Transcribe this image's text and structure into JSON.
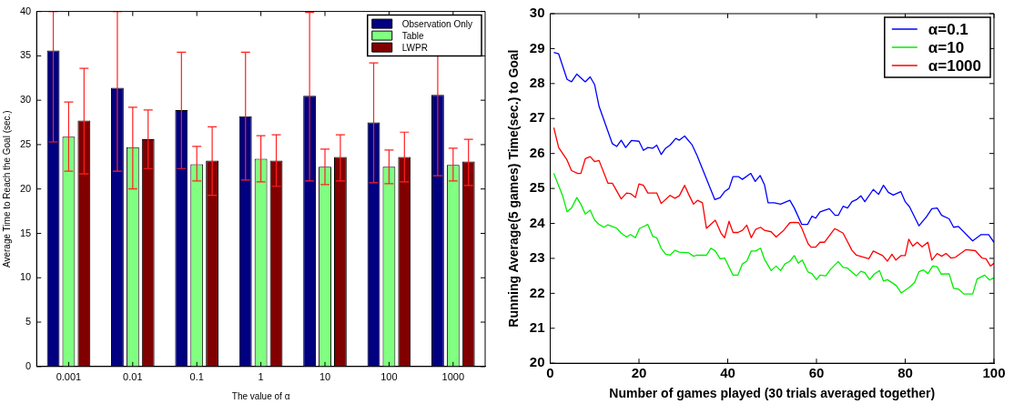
{
  "chart_data": [
    {
      "type": "bar",
      "xlabel": "The value of α",
      "ylabel": "Average Time to Reach the Goal (sec.)",
      "categories": [
        "0.001",
        "0.01",
        "0.1",
        "1",
        "10",
        "100",
        "1000"
      ],
      "series": [
        {
          "name": "Observation Only",
          "color": "#000080",
          "values": [
            35.6,
            31.4,
            28.9,
            28.2,
            30.5,
            27.5,
            30.6
          ],
          "errors": [
            [
              25.3,
              40
            ],
            [
              22.0,
              40
            ],
            [
              22.3,
              35.4
            ],
            [
              21.0,
              35.4
            ],
            [
              20.9,
              39.9
            ],
            [
              20.7,
              34.2
            ],
            [
              21.5,
              39.6
            ]
          ]
        },
        {
          "name": "Table",
          "color": "#80ff80",
          "values": [
            25.9,
            24.7,
            22.8,
            23.4,
            22.5,
            22.5,
            22.7
          ],
          "errors": [
            [
              22.0,
              29.8
            ],
            [
              20.0,
              29.2
            ],
            [
              20.9,
              24.8
            ],
            [
              20.8,
              26.0
            ],
            [
              20.5,
              24.5
            ],
            [
              20.6,
              24.4
            ],
            [
              20.9,
              24.6
            ]
          ]
        },
        {
          "name": "LWPR",
          "color": "#800000",
          "values": [
            27.7,
            25.6,
            23.2,
            23.2,
            23.6,
            23.6,
            23.1
          ],
          "errors": [
            [
              21.7,
              33.6
            ],
            [
              22.3,
              28.9
            ],
            [
              19.3,
              27.0
            ],
            [
              20.3,
              26.1
            ],
            [
              20.9,
              26.1
            ],
            [
              20.8,
              26.4
            ],
            [
              20.4,
              25.6
            ]
          ]
        }
      ],
      "ylim": [
        0,
        40
      ],
      "yticks": [
        0,
        5,
        10,
        15,
        20,
        25,
        30,
        35,
        40
      ],
      "grid": false,
      "legend": "top right"
    },
    {
      "type": "line",
      "xlabel": "Number of games played (30 trials averaged together)",
      "ylabel": "Running Average(5 games) Time(sec.) to Goal",
      "series": [
        {
          "name": "α=0.1",
          "color": "#0000ff",
          "x": [
            0.8,
            1.9,
            3.8,
            4.8,
            6,
            7.9,
            9,
            10,
            11,
            14,
            15,
            16,
            17,
            18.3,
            20,
            21,
            22,
            23.1,
            24,
            25,
            26,
            27,
            28.3,
            29.1,
            30.3,
            32,
            33.1,
            37.1,
            38.3,
            39.3,
            40.3,
            41.2,
            42.4,
            43.3,
            45.2,
            46.2,
            47.3,
            48.3,
            49.1,
            50.5,
            51.9,
            54,
            55,
            56.7,
            58,
            59,
            59.8,
            60.8,
            62.9,
            64.2,
            64.9,
            66,
            67,
            68,
            69,
            70,
            70.9,
            72.8,
            74,
            75.1,
            76.2,
            77.3,
            79,
            80,
            81,
            83.1,
            84.8,
            86,
            87.2,
            88.2,
            89.9,
            90.9,
            92,
            95.2,
            97.1,
            98.8,
            100
          ],
          "values": [
            28.89,
            28.85,
            28.12,
            28.05,
            28.27,
            28.05,
            28.19,
            27.97,
            27.35,
            26.28,
            26.2,
            26.38,
            26.17,
            26.37,
            26.35,
            26.09,
            26.17,
            26.15,
            26.24,
            25.97,
            26.15,
            26.24,
            26.43,
            26.38,
            26.5,
            26.24,
            25.94,
            24.68,
            24.74,
            24.91,
            25.0,
            25.34,
            25.34,
            25.26,
            25.43,
            25.2,
            25.37,
            25.1,
            24.59,
            24.59,
            24.55,
            24.66,
            24.44,
            23.97,
            23.97,
            24.21,
            24.15,
            24.33,
            24.42,
            24.23,
            24.23,
            24.49,
            24.44,
            24.62,
            24.68,
            24.79,
            24.62,
            24.97,
            24.83,
            25.09,
            24.89,
            24.81,
            24.91,
            24.62,
            24.47,
            23.93,
            24.19,
            24.42,
            24.44,
            24.23,
            24.13,
            23.89,
            23.91,
            23.5,
            23.68,
            23.68,
            23.46
          ]
        },
        {
          "name": "α=10",
          "color": "#00ee00",
          "x": [
            0.8,
            2.8,
            3.8,
            4.8,
            6,
            6.9,
            7.9,
            9,
            10,
            11,
            12.1,
            13,
            15,
            16,
            17.2,
            18.1,
            19.2,
            20.1,
            21,
            22,
            23.1,
            24,
            25,
            26,
            27,
            28.1,
            29.1,
            31.2,
            32.3,
            33.1,
            35.2,
            36.2,
            37.2,
            38.3,
            39.3,
            41.2,
            42.3,
            43.3,
            44.3,
            45.3,
            46.3,
            47.4,
            48.3,
            49.8,
            50.9,
            51.9,
            52.9,
            54,
            55,
            55.9,
            56.8,
            58.1,
            59,
            60,
            60.8,
            62.1,
            63.2,
            64.9,
            66,
            67,
            69,
            70,
            70.9,
            72,
            73,
            74.2,
            75.1,
            76,
            78,
            79.1,
            81,
            82.1,
            83.1,
            84.1,
            85.1,
            86.2,
            87.2,
            88.1,
            89.9,
            90.9,
            92,
            93.2,
            95.2,
            96.2,
            97.9,
            99,
            100
          ],
          "values": [
            25.43,
            24.79,
            24.33,
            24.44,
            24.74,
            24.55,
            24.27,
            24.38,
            24.1,
            23.97,
            23.89,
            23.96,
            23.86,
            23.72,
            23.61,
            23.68,
            23.59,
            23.85,
            23.91,
            23.97,
            23.63,
            23.59,
            23.29,
            23.12,
            23.09,
            23.23,
            23.18,
            23.16,
            23.06,
            23.09,
            23.09,
            23.29,
            23.21,
            22.99,
            23.01,
            22.52,
            22.52,
            22.84,
            22.92,
            23.21,
            23.21,
            23.29,
            22.97,
            22.65,
            22.78,
            22.65,
            22.84,
            22.92,
            23.08,
            22.86,
            22.95,
            22.61,
            22.56,
            22.39,
            22.52,
            22.5,
            22.69,
            22.91,
            22.74,
            22.72,
            22.5,
            22.63,
            22.59,
            22.39,
            22.55,
            22.65,
            22.35,
            22.39,
            22.22,
            22.01,
            22.18,
            22.31,
            22.62,
            22.67,
            22.56,
            22.78,
            22.76,
            22.55,
            22.56,
            22.14,
            22.12,
            21.98,
            21.98,
            22.41,
            22.52,
            22.38,
            22.44
          ]
        },
        {
          "name": "α=1000",
          "color": "#ff0000",
          "x": [
            0.8,
            1.9,
            3.8,
            4.8,
            6.2,
            6.9,
            7.9,
            9,
            10,
            11,
            13,
            14,
            16,
            17.2,
            18.1,
            19.2,
            20,
            21,
            22,
            24,
            25,
            27,
            28.1,
            29.1,
            30.3,
            31.2,
            32.3,
            33.2,
            34.3,
            35.2,
            37.2,
            38.5,
            39.3,
            40.3,
            41.2,
            42.3,
            43.3,
            44.3,
            45.3,
            46.3,
            47.4,
            48.3,
            49.8,
            50.9,
            52.6,
            54,
            55,
            56,
            56.7,
            58.1,
            58.8,
            59.8,
            60.8,
            61.8,
            64.1,
            64.9,
            66,
            68,
            69,
            71.8,
            72.8,
            74.9,
            76,
            77,
            77.9,
            79.1,
            80,
            80.8,
            81.7,
            82.7,
            83.8,
            85.1,
            86,
            87.2,
            88.2,
            89.2,
            90.3,
            91.3,
            93.7,
            95.8,
            97.3,
            98.2,
            99.2,
            100
          ],
          "values": [
            26.74,
            26.17,
            25.81,
            25.51,
            25.43,
            25.43,
            25.85,
            25.91,
            25.77,
            25.8,
            25.15,
            25.15,
            24.7,
            24.87,
            24.85,
            24.74,
            25.13,
            25.09,
            24.87,
            24.87,
            24.57,
            24.8,
            24.72,
            24.79,
            25.09,
            24.83,
            24.55,
            24.66,
            24.59,
            23.86,
            24.09,
            23.72,
            23.59,
            24.06,
            23.74,
            23.74,
            23.8,
            23.95,
            23.59,
            23.83,
            23.89,
            23.8,
            23.76,
            23.61,
            23.8,
            24.02,
            24.03,
            24.02,
            23.86,
            23.42,
            23.32,
            23.32,
            23.46,
            23.46,
            23.85,
            23.8,
            23.72,
            23.23,
            23.09,
            22.99,
            23.21,
            23.08,
            22.92,
            23.12,
            22.95,
            23.08,
            23.08,
            23.55,
            23.35,
            23.46,
            23.33,
            23.46,
            22.95,
            23.14,
            23.06,
            23.14,
            23.01,
            23.03,
            23.25,
            23.22,
            23.01,
            22.99,
            22.78,
            22.86
          ]
        }
      ],
      "xlim": [
        0,
        100
      ],
      "xticks": [
        0,
        20,
        40,
        60,
        80,
        100
      ],
      "ylim": [
        20,
        30
      ],
      "yticks": [
        20,
        21,
        22,
        23,
        24,
        25,
        26,
        27,
        28,
        29,
        30
      ],
      "grid": false,
      "legend": "top right"
    }
  ]
}
